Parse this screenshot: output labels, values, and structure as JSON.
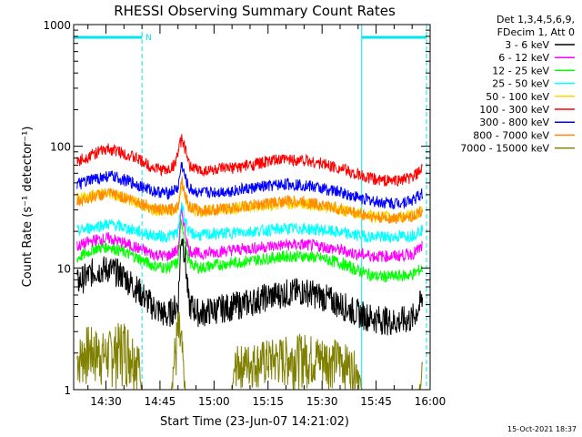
{
  "chart_data": {
    "type": "line",
    "title": "RHESSI Observing Summary Count Rates",
    "xlabel": "Start Time (23-Jun-07 14:21:02)",
    "ylabel": "Count Rate (s⁻¹ detector⁻¹)",
    "y_scale": "log",
    "ylim": [
      1,
      1000
    ],
    "xlim": [
      "14:21:02",
      "16:00:00"
    ],
    "x_tick_labels": [
      "14:30",
      "14:45",
      "15:00",
      "15:15",
      "15:30",
      "15:45",
      "16:00"
    ],
    "y_tick_labels": [
      "1",
      "10",
      "100",
      "1000"
    ],
    "legend_header": [
      "Det 1,3,4,5,6,9,",
      "FDecim 1, Att 0"
    ],
    "legend_position": "right-top",
    "night_marker": "N",
    "timestamp": "15-Oct-2021 18:37",
    "night_intervals": [
      [
        "14:21:02",
        "14:40:00"
      ],
      [
        "15:41:00",
        "15:59:00"
      ]
    ],
    "series": [
      {
        "name": "3 - 6 keV",
        "color": "#000000",
        "points": [
          [
            "14:22",
            7.5
          ],
          [
            "14:27",
            9.5
          ],
          [
            "14:31",
            9.8
          ],
          [
            "14:35",
            8.5
          ],
          [
            "14:39",
            6.5
          ],
          [
            "14:43",
            4.8
          ],
          [
            "14:47",
            4.0
          ],
          [
            "14:50",
            5.0
          ],
          [
            "14:51",
            20.0
          ],
          [
            "14:52",
            12.0
          ],
          [
            "14:53",
            5.0
          ],
          [
            "14:56",
            4.2
          ],
          [
            "15:00",
            4.5
          ],
          [
            "15:05",
            4.8
          ],
          [
            "15:10",
            5.2
          ],
          [
            "15:15",
            5.8
          ],
          [
            "15:20",
            6.2
          ],
          [
            "15:25",
            6.4
          ],
          [
            "15:30",
            5.8
          ],
          [
            "15:35",
            5.0
          ],
          [
            "15:40",
            4.2
          ],
          [
            "15:45",
            3.8
          ],
          [
            "15:50",
            3.6
          ],
          [
            "15:55",
            3.8
          ],
          [
            "15:58",
            5.5
          ]
        ]
      },
      {
        "name": "6 - 12 keV",
        "color": "#ff00ff",
        "points": [
          [
            "14:22",
            15.0
          ],
          [
            "14:27",
            17.0
          ],
          [
            "14:31",
            17.5
          ],
          [
            "14:35",
            16.0
          ],
          [
            "14:39",
            14.5
          ],
          [
            "14:43",
            13.0
          ],
          [
            "14:47",
            12.5
          ],
          [
            "14:50",
            14.0
          ],
          [
            "14:51",
            30.0
          ],
          [
            "14:52",
            20.0
          ],
          [
            "14:53",
            14.0
          ],
          [
            "14:56",
            13.0
          ],
          [
            "15:00",
            13.5
          ],
          [
            "15:05",
            14.0
          ],
          [
            "15:10",
            14.5
          ],
          [
            "15:15",
            15.0
          ],
          [
            "15:20",
            15.5
          ],
          [
            "15:25",
            15.5
          ],
          [
            "15:30",
            15.0
          ],
          [
            "15:35",
            14.0
          ],
          [
            "15:40",
            13.0
          ],
          [
            "15:45",
            12.5
          ],
          [
            "15:50",
            12.5
          ],
          [
            "15:55",
            13.0
          ],
          [
            "15:58",
            15.0
          ]
        ]
      },
      {
        "name": "12 - 25 keV",
        "color": "#00ff00",
        "points": [
          [
            "14:22",
            12.0
          ],
          [
            "14:27",
            14.5
          ],
          [
            "14:31",
            15.0
          ],
          [
            "14:35",
            13.5
          ],
          [
            "14:39",
            12.0
          ],
          [
            "14:43",
            10.5
          ],
          [
            "14:47",
            10.0
          ],
          [
            "14:50",
            11.0
          ],
          [
            "14:51",
            25.0
          ],
          [
            "14:52",
            16.0
          ],
          [
            "14:53",
            11.0
          ],
          [
            "14:56",
            10.0
          ],
          [
            "15:00",
            10.5
          ],
          [
            "15:05",
            11.0
          ],
          [
            "15:10",
            11.5
          ],
          [
            "15:15",
            12.0
          ],
          [
            "15:20",
            12.5
          ],
          [
            "15:25",
            12.5
          ],
          [
            "15:30",
            12.0
          ],
          [
            "15:35",
            11.0
          ],
          [
            "15:40",
            9.5
          ],
          [
            "15:45",
            8.5
          ],
          [
            "15:50",
            8.5
          ],
          [
            "15:55",
            8.8
          ],
          [
            "15:58",
            10.0
          ]
        ]
      },
      {
        "name": "25 - 50 keV",
        "color": "#00ffff",
        "points": [
          [
            "14:22",
            20.0
          ],
          [
            "14:27",
            22.0
          ],
          [
            "14:31",
            23.0
          ],
          [
            "14:35",
            21.5
          ],
          [
            "14:39",
            20.0
          ],
          [
            "14:43",
            18.5
          ],
          [
            "14:47",
            18.0
          ],
          [
            "14:50",
            19.5
          ],
          [
            "14:51",
            35.0
          ],
          [
            "14:52",
            25.0
          ],
          [
            "14:53",
            19.5
          ],
          [
            "14:56",
            18.5
          ],
          [
            "15:00",
            19.0
          ],
          [
            "15:05",
            19.5
          ],
          [
            "15:10",
            20.0
          ],
          [
            "15:15",
            20.5
          ],
          [
            "15:20",
            21.0
          ],
          [
            "15:25",
            21.0
          ],
          [
            "15:30",
            20.5
          ],
          [
            "15:35",
            19.5
          ],
          [
            "15:40",
            18.5
          ],
          [
            "15:45",
            18.0
          ],
          [
            "15:50",
            18.0
          ],
          [
            "15:55",
            18.5
          ],
          [
            "15:58",
            21.0
          ]
        ]
      },
      {
        "name": "50 - 100 keV",
        "color": "#ffd700",
        "points": [
          [
            "14:22",
            37.0
          ],
          [
            "14:27",
            40.0
          ],
          [
            "14:31",
            41.0
          ],
          [
            "14:35",
            38.0
          ],
          [
            "14:39",
            34.0
          ],
          [
            "14:43",
            30.0
          ],
          [
            "14:47",
            29.0
          ],
          [
            "14:50",
            31.0
          ],
          [
            "14:51",
            50.0
          ],
          [
            "14:52",
            38.0
          ],
          [
            "14:53",
            31.0
          ],
          [
            "14:56",
            29.0
          ],
          [
            "15:00",
            30.0
          ],
          [
            "15:05",
            31.0
          ],
          [
            "15:10",
            32.0
          ],
          [
            "15:15",
            33.0
          ],
          [
            "15:20",
            34.0
          ],
          [
            "15:25",
            33.5
          ],
          [
            "15:30",
            32.0
          ],
          [
            "15:35",
            30.0
          ],
          [
            "15:40",
            28.0
          ],
          [
            "15:45",
            26.5
          ],
          [
            "15:50",
            26.0
          ],
          [
            "15:55",
            27.0
          ],
          [
            "15:58",
            29.0
          ]
        ]
      },
      {
        "name": "100 - 300 keV",
        "color": "#ff0000",
        "points": [
          [
            "14:22",
            75.0
          ],
          [
            "14:27",
            88.0
          ],
          [
            "14:31",
            95.0
          ],
          [
            "14:35",
            88.0
          ],
          [
            "14:39",
            78.0
          ],
          [
            "14:43",
            67.0
          ],
          [
            "14:47",
            63.0
          ],
          [
            "14:49",
            70.0
          ],
          [
            "14:51",
            115.0
          ],
          [
            "14:52",
            95.0
          ],
          [
            "14:53",
            70.0
          ],
          [
            "14:56",
            63.0
          ],
          [
            "15:00",
            64.0
          ],
          [
            "15:05",
            66.0
          ],
          [
            "15:10",
            70.0
          ],
          [
            "15:15",
            75.0
          ],
          [
            "15:20",
            78.0
          ],
          [
            "15:25",
            77.0
          ],
          [
            "15:30",
            72.0
          ],
          [
            "15:35",
            66.0
          ],
          [
            "15:40",
            58.0
          ],
          [
            "15:45",
            53.0
          ],
          [
            "15:50",
            52.0
          ],
          [
            "15:55",
            55.0
          ],
          [
            "15:58",
            65.0
          ]
        ]
      },
      {
        "name": "300 - 800 keV",
        "color": "#0000ff",
        "points": [
          [
            "14:22",
            48.0
          ],
          [
            "14:27",
            54.0
          ],
          [
            "14:31",
            57.0
          ],
          [
            "14:35",
            53.0
          ],
          [
            "14:39",
            48.0
          ],
          [
            "14:43",
            43.0
          ],
          [
            "14:47",
            41.0
          ],
          [
            "14:50",
            45.0
          ],
          [
            "14:51",
            72.0
          ],
          [
            "14:52",
            55.0
          ],
          [
            "14:53",
            45.0
          ],
          [
            "14:56",
            41.0
          ],
          [
            "15:00",
            42.0
          ],
          [
            "15:05",
            43.0
          ],
          [
            "15:10",
            45.0
          ],
          [
            "15:15",
            47.0
          ],
          [
            "15:20",
            49.0
          ],
          [
            "15:25",
            48.0
          ],
          [
            "15:30",
            45.0
          ],
          [
            "15:35",
            42.0
          ],
          [
            "15:40",
            38.0
          ],
          [
            "15:45",
            35.0
          ],
          [
            "15:50",
            34.0
          ],
          [
            "15:55",
            36.0
          ],
          [
            "15:58",
            41.0
          ]
        ]
      },
      {
        "name": "800 - 7000 keV",
        "color": "#ff8c00",
        "points": [
          [
            "14:22",
            35.0
          ],
          [
            "14:27",
            39.0
          ],
          [
            "14:31",
            41.0
          ],
          [
            "14:35",
            38.0
          ],
          [
            "14:39",
            35.0
          ],
          [
            "14:43",
            31.0
          ],
          [
            "14:47",
            29.5
          ],
          [
            "14:50",
            32.0
          ],
          [
            "14:51",
            55.0
          ],
          [
            "14:52",
            40.0
          ],
          [
            "14:53",
            32.0
          ],
          [
            "14:56",
            29.5
          ],
          [
            "15:00",
            30.0
          ],
          [
            "15:05",
            31.0
          ],
          [
            "15:10",
            32.5
          ],
          [
            "15:15",
            34.0
          ],
          [
            "15:20",
            35.5
          ],
          [
            "15:25",
            35.0
          ],
          [
            "15:30",
            33.0
          ],
          [
            "15:35",
            30.5
          ],
          [
            "15:40",
            28.0
          ],
          [
            "15:45",
            26.0
          ],
          [
            "15:50",
            25.5
          ],
          [
            "15:55",
            26.5
          ],
          [
            "15:58",
            30.0
          ]
        ]
      },
      {
        "name": "7000 - 15000 keV",
        "color": "#808000",
        "points": [
          [
            "14:22",
            2.0
          ],
          [
            "14:25",
            2.5
          ],
          [
            "14:30",
            2.2
          ],
          [
            "14:35",
            2.8
          ],
          [
            "14:39",
            2.0
          ],
          [
            "14:40",
            1.0
          ],
          [
            "14:48",
            1.0
          ],
          [
            "14:49",
            2.0
          ],
          [
            "14:50",
            3.5
          ],
          [
            "14:51",
            2.5
          ],
          [
            "14:52",
            1.0
          ],
          [
            "15:05",
            1.0
          ],
          [
            "15:06",
            1.8
          ],
          [
            "15:15",
            2.0
          ],
          [
            "15:25",
            2.2
          ],
          [
            "15:35",
            2.0
          ],
          [
            "15:40",
            1.6
          ],
          [
            "15:41",
            1.0
          ],
          [
            "15:57",
            1.0
          ],
          [
            "15:58",
            1.8
          ]
        ]
      }
    ]
  }
}
